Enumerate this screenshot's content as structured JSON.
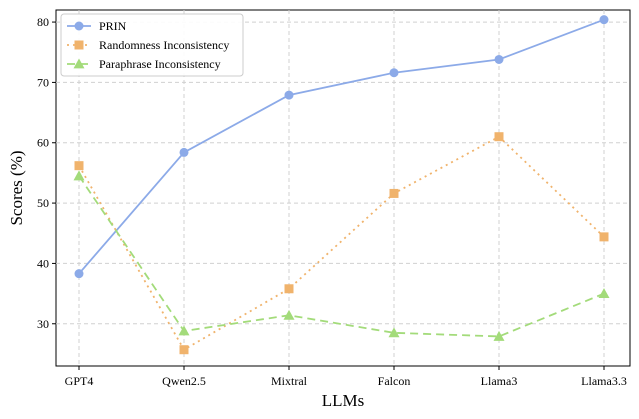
{
  "chart_data": {
    "type": "line",
    "title": "",
    "xlabel": "LLMs",
    "ylabel": "Scores (%)",
    "categories": [
      "GPT4",
      "Qwen2.5",
      "Mixtral",
      "Falcon",
      "Llama3",
      "Llama3.3"
    ],
    "ylim": [
      23,
      82
    ],
    "yticks": [
      30,
      40,
      50,
      60,
      70,
      80
    ],
    "grid": true,
    "legend_position": "top-left",
    "series": [
      {
        "name": "PRIN",
        "values": [
          38.3,
          58.4,
          67.9,
          71.6,
          73.8,
          80.4
        ],
        "color": "#8caae8",
        "marker": "circle",
        "line_style": "solid"
      },
      {
        "name": "Randomness Inconsistency",
        "values": [
          56.2,
          25.7,
          35.8,
          51.6,
          61.0,
          44.4
        ],
        "color": "#f0b36c",
        "marker": "square",
        "line_style": "dotted"
      },
      {
        "name": "Paraphrase Inconsistency",
        "values": [
          54.5,
          28.8,
          31.4,
          28.5,
          27.9,
          35.0
        ],
        "color": "#a3db7a",
        "marker": "triangle",
        "line_style": "dashed"
      }
    ]
  }
}
